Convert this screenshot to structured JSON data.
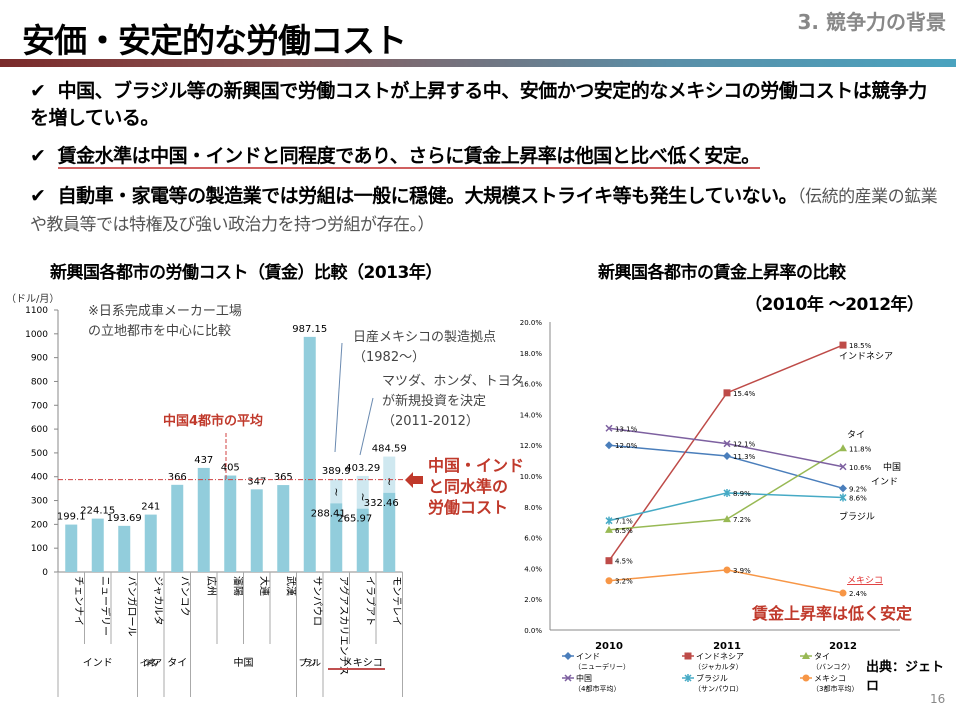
{
  "header": {
    "title": "安価・安定的な労働コスト",
    "section": "3. 競争力の背景"
  },
  "bullets": [
    {
      "mark": "✔",
      "text": "中国、ブラジル等の新興国で労働コストが上昇する中、安価かつ安定的なメキシコの労働コストは競争力を増している。"
    },
    {
      "mark": "✔",
      "text": "賃金水準は中国・インドと同程度であり、さらに賃金上昇率は他国と比べ低く安定。"
    },
    {
      "mark": "✔",
      "text": "自動車・家電等の製造業では労組は一般に穏健。大規模ストライキ等も発生していない。",
      "note": "（伝統的産業の鉱業や教員等では特権及び強い政治力を持つ労組が存在。）"
    }
  ],
  "annotations": {
    "note1": "※日系完成車メーカー工場",
    "note2": "の立地都市を中心に比較",
    "nissan1": "日産メキシコの製造拠点",
    "nissan2": "（1982〜）",
    "mazda1": "マツダ、ホンダ、トヨタ",
    "mazda2": "が新規投資を決定",
    "mazda3": "（2011-2012）",
    "china_avg": "中国4都市の平均",
    "callout1": "中国・インド",
    "callout2": "と同水準の",
    "callout3": "労働コスト",
    "stable": "賃金上昇率は低く安定",
    "source": "出典：ジェトロ",
    "page": "16"
  },
  "chart_data": [
    {
      "type": "bar",
      "title": "新興国各都市の労働コスト（賃金）比較（2013年）",
      "ylabel": "（ドル/月）",
      "ylim": [
        0,
        1100
      ],
      "yticks": [
        "0",
        "100",
        "200",
        "300",
        "400",
        "500",
        "600",
        "700",
        "800",
        "900",
        "1000",
        "1100"
      ],
      "categories": [
        "チェンナイ",
        "ニューデリー",
        "バンガロール",
        "ジャカルタ",
        "バンコク",
        "広州",
        "瀋陽",
        "大連",
        "武漢",
        "サンパウロ",
        "アグアスカリエンテス",
        "イラプアト",
        "モンテレイ"
      ],
      "values": [
        199.1,
        224.15,
        193.69,
        241,
        366,
        437,
        405,
        347,
        365,
        987.15,
        389.9,
        403.29,
        484.59
      ],
      "labels": [
        "199.1",
        "224.15",
        "193.69",
        "241",
        "366",
        "437",
        "405",
        "347",
        "365",
        "987.15",
        "389.9",
        "403.29",
        "484.59"
      ],
      "low_values": [
        null,
        null,
        null,
        null,
        null,
        null,
        null,
        null,
        null,
        null,
        288.41,
        265.97,
        332.46
      ],
      "low_labels": [
        null,
        null,
        null,
        null,
        null,
        null,
        null,
        null,
        null,
        null,
        "288.41",
        "265.97",
        "332.46"
      ],
      "groups": [
        {
          "label": "インド",
          "span": 3
        },
        {
          "label": "インドネシア",
          "span": 1
        },
        {
          "label": "タイ",
          "span": 1
        },
        {
          "label": "中国",
          "span": 4
        },
        {
          "label": "ブラジル",
          "span": 1
        },
        {
          "label": "メキシコ",
          "span": 3
        }
      ],
      "china_avg_line": 388,
      "color": "#92cddc"
    },
    {
      "type": "line",
      "title": "新興国各都市の賃金上昇率の比較",
      "subtitle": "（2010年 〜2012年）",
      "x": [
        "2010",
        "2011",
        "2012"
      ],
      "ylim": [
        0,
        20
      ],
      "yticks": [
        "0.0%",
        "2.0%",
        "4.0%",
        "6.0%",
        "8.0%",
        "10.0%",
        "12.0%",
        "14.0%",
        "16.0%",
        "18.0%",
        "20.0%"
      ],
      "series": [
        {
          "name": "インド",
          "sub": "（ニューデリー）",
          "values": [
            12.0,
            11.3,
            9.2
          ],
          "labels": [
            "12.0%",
            "11.3%",
            "9.2%"
          ],
          "end": "インド",
          "color": "#4a7ebb",
          "marker": "diamond"
        },
        {
          "name": "インドネシア",
          "sub": "（ジャカルタ）",
          "values": [
            4.5,
            15.4,
            18.5
          ],
          "labels": [
            "4.5%",
            "15.4%",
            "18.5%"
          ],
          "end": "インドネシア",
          "color": "#be4b48",
          "marker": "square"
        },
        {
          "name": "タイ",
          "sub": "（バンコク）",
          "values": [
            6.5,
            7.2,
            11.8
          ],
          "labels": [
            "6.5%",
            "7.2%",
            "11.8%"
          ],
          "end": "タイ",
          "color": "#98b954",
          "marker": "triangle"
        },
        {
          "name": "中国",
          "sub": "（4都市平均）",
          "values": [
            13.1,
            12.1,
            10.6
          ],
          "labels": [
            "13.1%",
            "12.1%",
            "10.6%"
          ],
          "end": "中国",
          "color": "#7d60a0",
          "marker": "x"
        },
        {
          "name": "ブラジル",
          "sub": "（サンパウロ）",
          "values": [
            7.1,
            8.9,
            8.6
          ],
          "labels": [
            "7.1%",
            "8.9%",
            "8.6%"
          ],
          "end": "ブラジル",
          "color": "#46aac5",
          "marker": "star"
        },
        {
          "name": "メキシコ",
          "sub": "（3都市平均）",
          "values": [
            3.2,
            3.9,
            2.4
          ],
          "labels": [
            "3.2%",
            "3.9%",
            "2.4%"
          ],
          "end": "メキシコ",
          "color": "#f79646",
          "marker": "circle"
        }
      ]
    }
  ]
}
